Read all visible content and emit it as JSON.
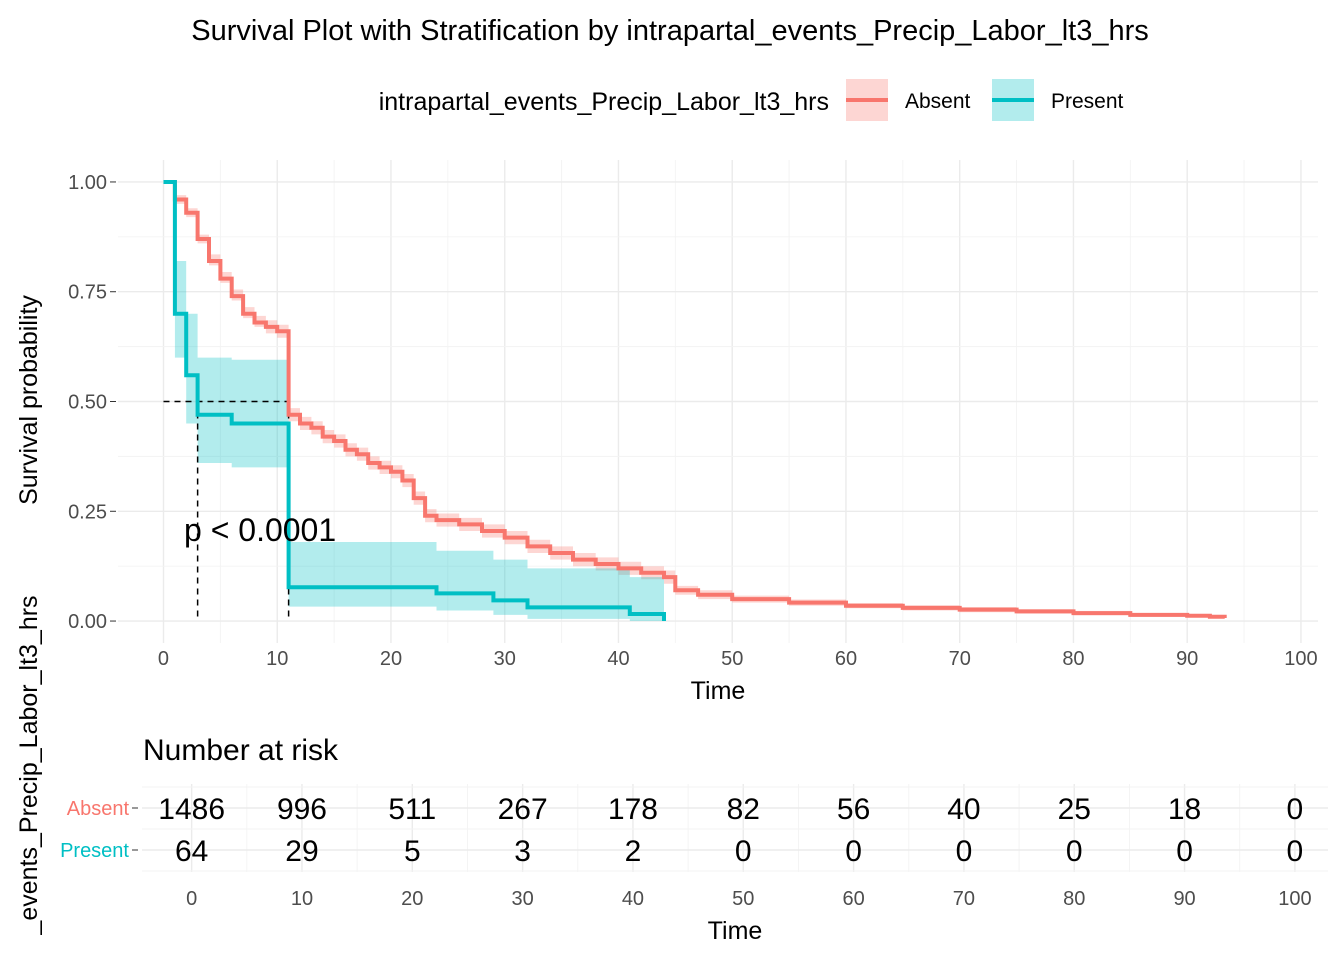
{
  "chart_data": {
    "type": "line",
    "title": "Survival Plot with Stratification by intrapartal_events_Precip_Labor_lt3_hrs",
    "legend": {
      "title": "intrapartal_events_Precip_Labor_lt3_hrs",
      "placement": "top"
    },
    "xlabel": "Time",
    "ylabel": "Survival probability",
    "xlim": [
      -4,
      101.5
    ],
    "ylim": [
      -0.05,
      1.05
    ],
    "x_ticks": [
      0,
      10,
      20,
      30,
      40,
      50,
      60,
      70,
      80,
      90,
      100
    ],
    "y_ticks": [
      0.0,
      0.25,
      0.5,
      0.75,
      1.0
    ],
    "y_tick_labels": [
      "0.00",
      "0.25",
      "0.50",
      "0.75",
      "1.00"
    ],
    "grid": true,
    "pvalue_text": "p < 0.0001",
    "median_lines": {
      "y": 0.5,
      "x": [
        3,
        11
      ]
    },
    "series": [
      {
        "name": "Absent",
        "color": "#F8766D",
        "fill": "#F8766D",
        "steps": [
          [
            0,
            1.0
          ],
          [
            1,
            0.96
          ],
          [
            2,
            0.93
          ],
          [
            3,
            0.87
          ],
          [
            4,
            0.82
          ],
          [
            5,
            0.78
          ],
          [
            6,
            0.74
          ],
          [
            7,
            0.7
          ],
          [
            8,
            0.68
          ],
          [
            9,
            0.67
          ],
          [
            10,
            0.66
          ],
          [
            11,
            0.47
          ],
          [
            12,
            0.45
          ],
          [
            13,
            0.44
          ],
          [
            14,
            0.42
          ],
          [
            15,
            0.41
          ],
          [
            16,
            0.39
          ],
          [
            17,
            0.38
          ],
          [
            18,
            0.36
          ],
          [
            19,
            0.35
          ],
          [
            20,
            0.34
          ],
          [
            21,
            0.32
          ],
          [
            22,
            0.28
          ],
          [
            23,
            0.24
          ],
          [
            24,
            0.23
          ],
          [
            26,
            0.22
          ],
          [
            28,
            0.205
          ],
          [
            30,
            0.19
          ],
          [
            32,
            0.17
          ],
          [
            34,
            0.155
          ],
          [
            36,
            0.14
          ],
          [
            38,
            0.13
          ],
          [
            40,
            0.12
          ],
          [
            42,
            0.11
          ],
          [
            44,
            0.1
          ],
          [
            45,
            0.07
          ],
          [
            47,
            0.06
          ],
          [
            50,
            0.05
          ],
          [
            55,
            0.042
          ],
          [
            60,
            0.035
          ],
          [
            65,
            0.03
          ],
          [
            70,
            0.026
          ],
          [
            75,
            0.022
          ],
          [
            80,
            0.018
          ],
          [
            85,
            0.014
          ],
          [
            90,
            0.012
          ],
          [
            92,
            0.01
          ],
          [
            93.3,
            0.007
          ]
        ],
        "ci_lower": [
          [
            0,
            1.0
          ],
          [
            1,
            0.95
          ],
          [
            2,
            0.92
          ],
          [
            3,
            0.86
          ],
          [
            4,
            0.81
          ],
          [
            5,
            0.77
          ],
          [
            6,
            0.73
          ],
          [
            7,
            0.69
          ],
          [
            8,
            0.67
          ],
          [
            9,
            0.655
          ],
          [
            10,
            0.645
          ],
          [
            11,
            0.455
          ],
          [
            12,
            0.435
          ],
          [
            13,
            0.425
          ],
          [
            14,
            0.405
          ],
          [
            15,
            0.395
          ],
          [
            16,
            0.375
          ],
          [
            17,
            0.365
          ],
          [
            18,
            0.345
          ],
          [
            19,
            0.335
          ],
          [
            20,
            0.325
          ],
          [
            21,
            0.305
          ],
          [
            22,
            0.265
          ],
          [
            23,
            0.225
          ],
          [
            24,
            0.215
          ],
          [
            26,
            0.205
          ],
          [
            28,
            0.19
          ],
          [
            30,
            0.175
          ],
          [
            32,
            0.155
          ],
          [
            34,
            0.14
          ],
          [
            36,
            0.125
          ],
          [
            38,
            0.115
          ],
          [
            40,
            0.105
          ],
          [
            42,
            0.095
          ],
          [
            44,
            0.085
          ],
          [
            45,
            0.06
          ],
          [
            47,
            0.05
          ],
          [
            50,
            0.042
          ],
          [
            55,
            0.035
          ],
          [
            60,
            0.029
          ],
          [
            65,
            0.024
          ],
          [
            70,
            0.02
          ],
          [
            75,
            0.017
          ],
          [
            80,
            0.013
          ],
          [
            85,
            0.01
          ],
          [
            90,
            0.008
          ],
          [
            92,
            0.006
          ],
          [
            93.3,
            0.004
          ]
        ],
        "ci_upper": [
          [
            0,
            1.0
          ],
          [
            1,
            0.97
          ],
          [
            2,
            0.94
          ],
          [
            3,
            0.88
          ],
          [
            4,
            0.835
          ],
          [
            5,
            0.795
          ],
          [
            6,
            0.755
          ],
          [
            7,
            0.715
          ],
          [
            8,
            0.695
          ],
          [
            9,
            0.685
          ],
          [
            10,
            0.675
          ],
          [
            11,
            0.485
          ],
          [
            12,
            0.465
          ],
          [
            13,
            0.455
          ],
          [
            14,
            0.435
          ],
          [
            15,
            0.425
          ],
          [
            16,
            0.405
          ],
          [
            17,
            0.395
          ],
          [
            18,
            0.375
          ],
          [
            19,
            0.365
          ],
          [
            20,
            0.355
          ],
          [
            21,
            0.335
          ],
          [
            22,
            0.295
          ],
          [
            23,
            0.255
          ],
          [
            24,
            0.245
          ],
          [
            26,
            0.235
          ],
          [
            28,
            0.22
          ],
          [
            30,
            0.205
          ],
          [
            32,
            0.185
          ],
          [
            34,
            0.17
          ],
          [
            36,
            0.155
          ],
          [
            38,
            0.145
          ],
          [
            40,
            0.135
          ],
          [
            42,
            0.125
          ],
          [
            44,
            0.115
          ],
          [
            45,
            0.08
          ],
          [
            47,
            0.07
          ],
          [
            50,
            0.058
          ],
          [
            55,
            0.049
          ],
          [
            60,
            0.041
          ],
          [
            65,
            0.036
          ],
          [
            70,
            0.032
          ],
          [
            75,
            0.027
          ],
          [
            80,
            0.023
          ],
          [
            85,
            0.018
          ],
          [
            90,
            0.016
          ],
          [
            92,
            0.014
          ],
          [
            93.3,
            0.01
          ]
        ]
      },
      {
        "name": "Present",
        "color": "#00BFC4",
        "fill": "#00BFC4",
        "steps": [
          [
            0,
            1.0
          ],
          [
            1,
            0.7
          ],
          [
            2,
            0.56
          ],
          [
            3,
            0.47
          ],
          [
            6,
            0.45
          ],
          [
            11,
            0.077
          ],
          [
            24,
            0.063
          ],
          [
            29,
            0.047
          ],
          [
            32,
            0.031
          ],
          [
            41,
            0.016
          ],
          [
            44,
            0.0
          ]
        ],
        "ci_lower": [
          [
            0,
            1.0
          ],
          [
            1,
            0.6
          ],
          [
            2,
            0.45
          ],
          [
            3,
            0.36
          ],
          [
            6,
            0.35
          ],
          [
            11,
            0.033
          ],
          [
            24,
            0.024
          ],
          [
            29,
            0.014
          ],
          [
            32,
            0.005
          ],
          [
            41,
            0.0
          ],
          [
            44,
            0.0
          ]
        ],
        "ci_upper": [
          [
            0,
            1.0
          ],
          [
            1,
            0.82
          ],
          [
            2,
            0.7
          ],
          [
            3,
            0.6
          ],
          [
            6,
            0.595
          ],
          [
            11,
            0.18
          ],
          [
            24,
            0.16
          ],
          [
            29,
            0.14
          ],
          [
            32,
            0.12
          ],
          [
            41,
            0.1
          ],
          [
            44,
            0.0
          ]
        ]
      }
    ],
    "risk_table": {
      "title": "Number at risk",
      "xlabel": "Time",
      "times": [
        0,
        10,
        20,
        30,
        40,
        50,
        60,
        70,
        80,
        90,
        100
      ],
      "rows": [
        {
          "name": "Absent",
          "color": "#F8766D",
          "values": [
            "1486",
            "996",
            "511",
            "267",
            "178",
            "82",
            "56",
            "40",
            "25",
            "18",
            "0"
          ]
        },
        {
          "name": "Present",
          "color": "#00BFC4",
          "values": [
            "64",
            "29",
            "5",
            "3",
            "2",
            "0",
            "0",
            "0",
            "0",
            "0",
            "0"
          ]
        }
      ],
      "side_label": "_events_Precip_Labor_lt3_hrs"
    }
  }
}
